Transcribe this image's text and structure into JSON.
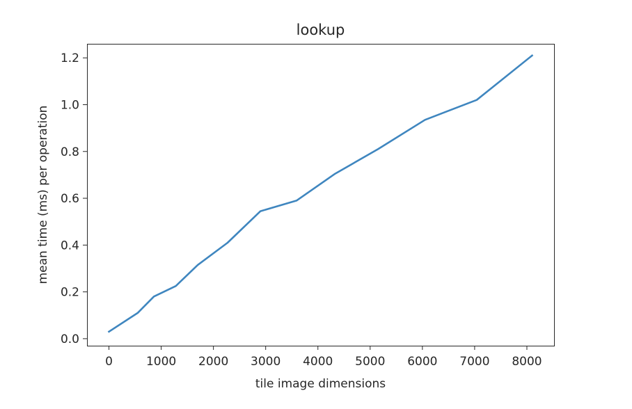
{
  "chart_data": {
    "type": "line",
    "title": "lookup",
    "xlabel": "tile image dimensions",
    "ylabel": "mean time (ms) per operation",
    "xlim": [
      -420,
      8520
    ],
    "ylim": [
      -0.03,
      1.26
    ],
    "xticks": [
      0,
      1000,
      2000,
      3000,
      4000,
      5000,
      6000,
      7000,
      8000
    ],
    "yticks": [
      0.0,
      0.2,
      0.4,
      0.6,
      0.8,
      1.0,
      1.2
    ],
    "xtick_labels": [
      "0",
      "1000",
      "2000",
      "3000",
      "4000",
      "5000",
      "6000",
      "7000",
      "8000"
    ],
    "ytick_labels": [
      "0.0",
      "0.2",
      "0.4",
      "0.6",
      "0.8",
      "1.0",
      "1.2"
    ],
    "grid": false,
    "series": [
      {
        "color": "#3f86bf",
        "x": [
          0,
          550,
          860,
          1280,
          1700,
          2270,
          2900,
          3590,
          4330,
          5150,
          6050,
          7040,
          8100
        ],
        "y": [
          0.03,
          0.11,
          0.18,
          0.225,
          0.315,
          0.41,
          0.545,
          0.59,
          0.705,
          0.81,
          0.935,
          1.02,
          1.21
        ]
      }
    ]
  }
}
